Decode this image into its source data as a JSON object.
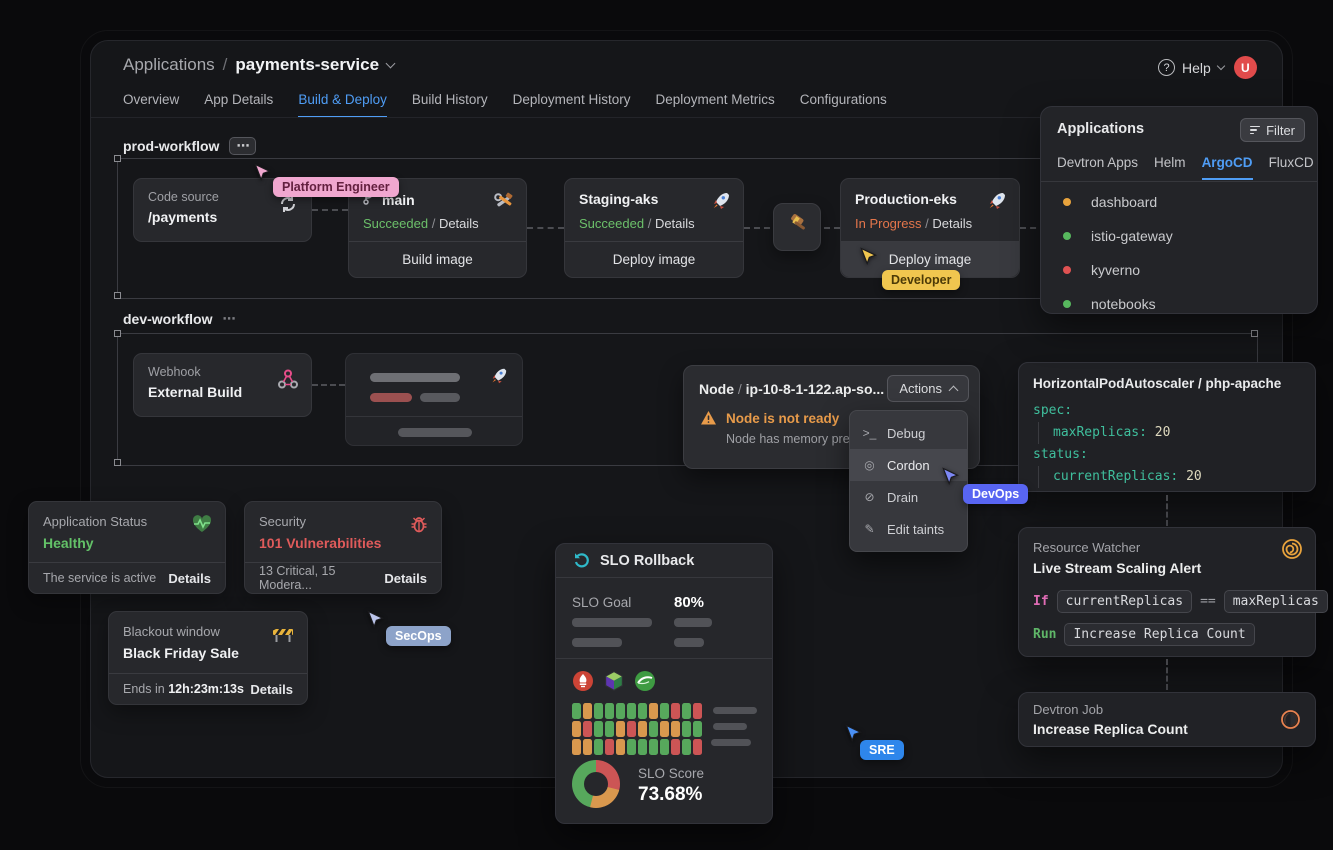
{
  "colors": {
    "accent_blue": "#4f9df5",
    "success_green": "#63c168",
    "in_progress_orange": "#e4764b",
    "warning_orange": "#e89b4a",
    "danger_red": "#e05b5b",
    "yaml_teal": "#3fbf9d",
    "heat_green": "#57a85c",
    "heat_orange": "#d9984e",
    "heat_red": "#cc5555",
    "avatar_red": "#e14b4b"
  },
  "header": {
    "breadcrumb_root": "Applications",
    "breadcrumb_separator": "/",
    "app_name": "payments-service",
    "help_label": "Help",
    "avatar_initial": "U",
    "tabs": [
      {
        "label": "Overview",
        "active": false
      },
      {
        "label": "App Details",
        "active": false
      },
      {
        "label": "Build & Deploy",
        "active": true
      },
      {
        "label": "Build History",
        "active": false
      },
      {
        "label": "Deployment History",
        "active": false
      },
      {
        "label": "Deployment Metrics",
        "active": false
      },
      {
        "label": "Configurations",
        "active": false
      }
    ]
  },
  "applications_panel": {
    "title": "Applications",
    "filter_label": "Filter",
    "tabs": [
      {
        "label": "Devtron Apps",
        "active": false
      },
      {
        "label": "Helm",
        "active": false
      },
      {
        "label": "ArgoCD",
        "active": true
      },
      {
        "label": "FluxCD",
        "active": false
      }
    ],
    "items": [
      {
        "name": "dashboard",
        "dot_color": "#e8a33d"
      },
      {
        "name": "istio-gateway",
        "dot_color": "#57b85e"
      },
      {
        "name": "kyverno",
        "dot_color": "#e05252"
      },
      {
        "name": "notebooks",
        "dot_color": "#57b85e"
      }
    ]
  },
  "prod_workflow": {
    "title": "prod-workflow",
    "more_icon": "⋯",
    "code_source": {
      "label": "Code source",
      "value": "/payments"
    },
    "build": {
      "branch": "main",
      "status": "Succeeded",
      "separator": "/",
      "details": "Details",
      "action": "Build image"
    },
    "staging": {
      "name": "Staging-aks",
      "status": "Succeeded",
      "separator": "/",
      "details": "Details",
      "action": "Deploy image"
    },
    "production": {
      "name": "Production-eks",
      "status": "In Progress",
      "separator": "/",
      "details": "Details",
      "action": "Deploy image"
    }
  },
  "dev_workflow": {
    "title": "dev-workflow",
    "more_icon": "⋯",
    "webhook": {
      "label": "Webhook",
      "value": "External Build"
    }
  },
  "node_panel": {
    "resource_kind": "Node",
    "separator": "/",
    "resource_name": "ip-10-8-1-122.ap-so...",
    "actions_label": "Actions",
    "alert_title": "Node is not ready",
    "alert_description": "Node has memory pre",
    "menu": [
      {
        "label": "Debug",
        "icon": ">_",
        "active": false
      },
      {
        "label": "Cordon",
        "icon": "◎",
        "active": true
      },
      {
        "label": "Drain",
        "icon": "⊘",
        "active": false
      },
      {
        "label": "Edit taints",
        "icon": "✎",
        "active": false
      }
    ]
  },
  "hpa_panel": {
    "title": "HorizontalPodAutoscaler / php-apache",
    "spec_key": "spec:",
    "max_replicas_key": "maxReplicas:",
    "max_replicas_value": "20",
    "status_key": "status:",
    "current_replicas_key": "currentReplicas:",
    "current_replicas_value": "20"
  },
  "app_status_card": {
    "label": "Application Status",
    "value": "Healthy",
    "footer_text": "The service is active",
    "details_label": "Details"
  },
  "security_card": {
    "label": "Security",
    "value": "101 Vulnerabilities",
    "footer_text": "13 Critical, 15 Modera...",
    "details_label": "Details"
  },
  "blackout_card": {
    "label": "Blackout window",
    "value": "Black Friday Sale",
    "footer_prefix": "Ends in",
    "footer_time": "12h:23m:13s",
    "details_label": "Details"
  },
  "slo_panel": {
    "title": "SLO Rollback",
    "goal_label": "SLO Goal",
    "goal_value": "80%",
    "score_label": "SLO Score",
    "score_value": "73.68%",
    "heatmap": [
      [
        "g",
        "o",
        "g",
        "g",
        "g",
        "g",
        "g",
        "o",
        "g",
        "r",
        "g",
        "r"
      ],
      [
        "o",
        "r",
        "g",
        "g",
        "o",
        "r",
        "o",
        "g",
        "o",
        "o",
        "g",
        "g"
      ],
      [
        "o",
        "o",
        "g",
        "r",
        "o",
        "g",
        "g",
        "g",
        "g",
        "r",
        "g",
        "r"
      ]
    ],
    "donut": [
      {
        "color": "#cc5555",
        "pct": 29
      },
      {
        "color": "#d9984e",
        "pct": 25
      },
      {
        "color": "#57a85c",
        "pct": 46
      }
    ]
  },
  "resource_watcher": {
    "label": "Resource Watcher",
    "title": "Live Stream Scaling Alert",
    "if_keyword": "If",
    "condition_left": "currentReplicas",
    "operator": "==",
    "condition_right": "maxReplicas",
    "run_keyword": "Run",
    "run_action": "Increase Replica Count"
  },
  "devtron_job": {
    "label": "Devtron Job",
    "title": "Increase Replica Count"
  },
  "cursors": [
    {
      "label": "Platform Engineer",
      "color": "#f0a7cf",
      "badge_bg": "#f0a7cf",
      "badge_text": "#63203f"
    },
    {
      "label": "Developer",
      "color": "#f0c64f",
      "badge_bg": "#f0c64f",
      "badge_text": "#4c3a07"
    },
    {
      "label": "DevOps",
      "color": "#7d88f4",
      "badge_bg": "#5865f2",
      "badge_text": "#ffffff"
    },
    {
      "label": "SecOps",
      "color": "#bac4ea",
      "badge_bg": "#8da3c9",
      "badge_text": "#ffffff"
    },
    {
      "label": "SRE",
      "color": "#4a90f5",
      "badge_bg": "#2e86eb",
      "badge_text": "#ffffff"
    }
  ]
}
